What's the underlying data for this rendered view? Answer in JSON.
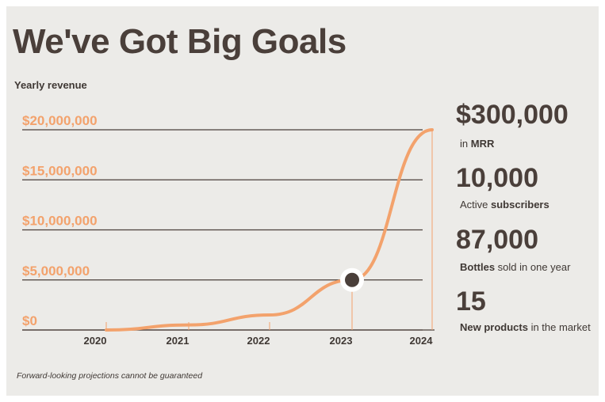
{
  "header": {
    "title": "We've Got Big Goals"
  },
  "chart_data": {
    "type": "line",
    "ylabel": "Yearly revenue",
    "x": [
      "2020",
      "2021",
      "2022",
      "2023",
      "2024"
    ],
    "y_ticks": [
      "$20,000,000",
      "$15,000,000",
      "$10,000,000",
      "$5,000,000",
      "$0"
    ],
    "ylim": [
      0,
      20000000
    ],
    "series": [
      {
        "values": [
          0,
          500000,
          1500000,
          5000000,
          20000000
        ]
      }
    ],
    "highlight": {
      "x": "2023",
      "value": 5000000
    },
    "grid": true,
    "colors": {
      "line": "#f3a26c",
      "tick_label": "#f3a26c",
      "marker": "#4a3f3a",
      "grid": "#4a3f3a"
    }
  },
  "stats": [
    {
      "value": "$300,000",
      "pre": "in ",
      "bold": "MRR",
      "post": ""
    },
    {
      "value": "10,000",
      "pre": "Active ",
      "bold": "subscribers",
      "post": ""
    },
    {
      "value": "87,000",
      "pre": "",
      "bold": "Bottles",
      "post": " sold in one year"
    },
    {
      "value": "15",
      "pre": "",
      "bold": "New products",
      "post": " in the market"
    }
  ],
  "footnote": "Forward-looking projections cannot be guaranteed"
}
